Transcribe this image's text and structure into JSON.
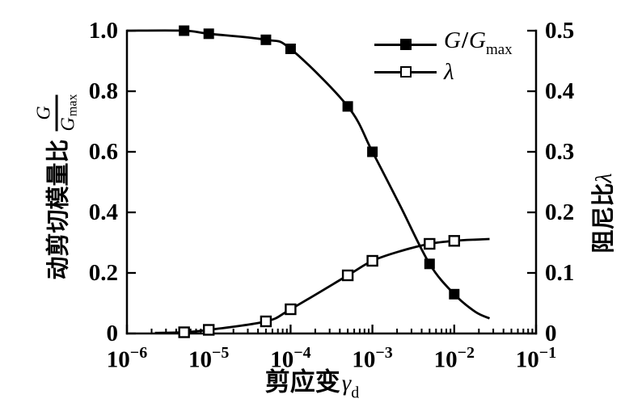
{
  "figure": {
    "background": "#ffffff",
    "ink": "#000000"
  },
  "chart_data": {
    "type": "line",
    "grid": false,
    "legend_position": "top-right-inside",
    "x_axis": {
      "label_cn": "剪应变",
      "label_symbol": "γ",
      "label_subscript": "d",
      "scale": "log",
      "range": [
        1e-06,
        0.1
      ],
      "tick_base": "10",
      "minus_sign": "−",
      "tick_exponents": [
        -6,
        -5,
        -4,
        -3,
        -2,
        -1
      ]
    },
    "y_left_axis": {
      "label_cn": "动剪切模量比",
      "fraction": {
        "numerator": "G",
        "denominator": "G",
        "denominator_sub": "max"
      },
      "range": [
        0,
        1.0
      ],
      "tick_labels": [
        "1.0",
        "0.8",
        "0.6",
        "0.4",
        "0.2",
        "0"
      ],
      "tick_values": [
        1.0,
        0.8,
        0.6,
        0.4,
        0.2,
        0
      ]
    },
    "y_right_axis": {
      "label_cn": "阻尼比",
      "label_symbol": "λ",
      "range": [
        0,
        0.5
      ],
      "tick_labels": [
        "0.5",
        "0.4",
        "0.3",
        "0.2",
        "0.1",
        "0"
      ],
      "tick_values": [
        0.5,
        0.4,
        0.3,
        0.2,
        0.1,
        0
      ]
    },
    "legend": {
      "entries": [
        {
          "marker": "filled-square",
          "label_parts": {
            "italic1": "G",
            "slash": "/",
            "italic2": "G",
            "sub": "max"
          }
        },
        {
          "marker": "open-square",
          "label": "λ"
        }
      ]
    },
    "series": [
      {
        "name": "G/Gmax",
        "axis": "left",
        "marker": "filled-square",
        "x": [
          5e-06,
          1e-05,
          5e-05,
          0.0001,
          0.0005,
          0.001,
          0.005,
          0.01
        ],
        "y": [
          1.0,
          0.99,
          0.97,
          0.94,
          0.75,
          0.6,
          0.23,
          0.13
        ],
        "curve_anchors": [
          [
            1e-06,
            1.0
          ],
          [
            5e-06,
            1.0
          ],
          [
            1e-05,
            0.99
          ],
          [
            5e-05,
            0.97
          ],
          [
            0.0001,
            0.94
          ],
          [
            0.0005,
            0.75
          ],
          [
            0.001,
            0.6
          ],
          [
            0.0022,
            0.42
          ],
          [
            0.005,
            0.23
          ],
          [
            0.01,
            0.13
          ],
          [
            0.018,
            0.072
          ],
          [
            0.027,
            0.05
          ]
        ]
      },
      {
        "name": "λ",
        "axis": "right",
        "marker": "open-square",
        "x": [
          5e-06,
          1e-05,
          5e-05,
          0.0001,
          0.0005,
          0.001,
          0.005,
          0.01
        ],
        "y": [
          0.002,
          0.006,
          0.02,
          0.04,
          0.096,
          0.12,
          0.148,
          0.153
        ],
        "curve_anchors": [
          [
            2.2e-06,
            0.001
          ],
          [
            5e-06,
            0.002
          ],
          [
            1e-05,
            0.006
          ],
          [
            5e-05,
            0.02
          ],
          [
            0.0001,
            0.04
          ],
          [
            0.0005,
            0.096
          ],
          [
            0.001,
            0.12
          ],
          [
            0.0022,
            0.136
          ],
          [
            0.005,
            0.148
          ],
          [
            0.01,
            0.153
          ],
          [
            0.018,
            0.155
          ],
          [
            0.027,
            0.156
          ]
        ]
      }
    ]
  }
}
